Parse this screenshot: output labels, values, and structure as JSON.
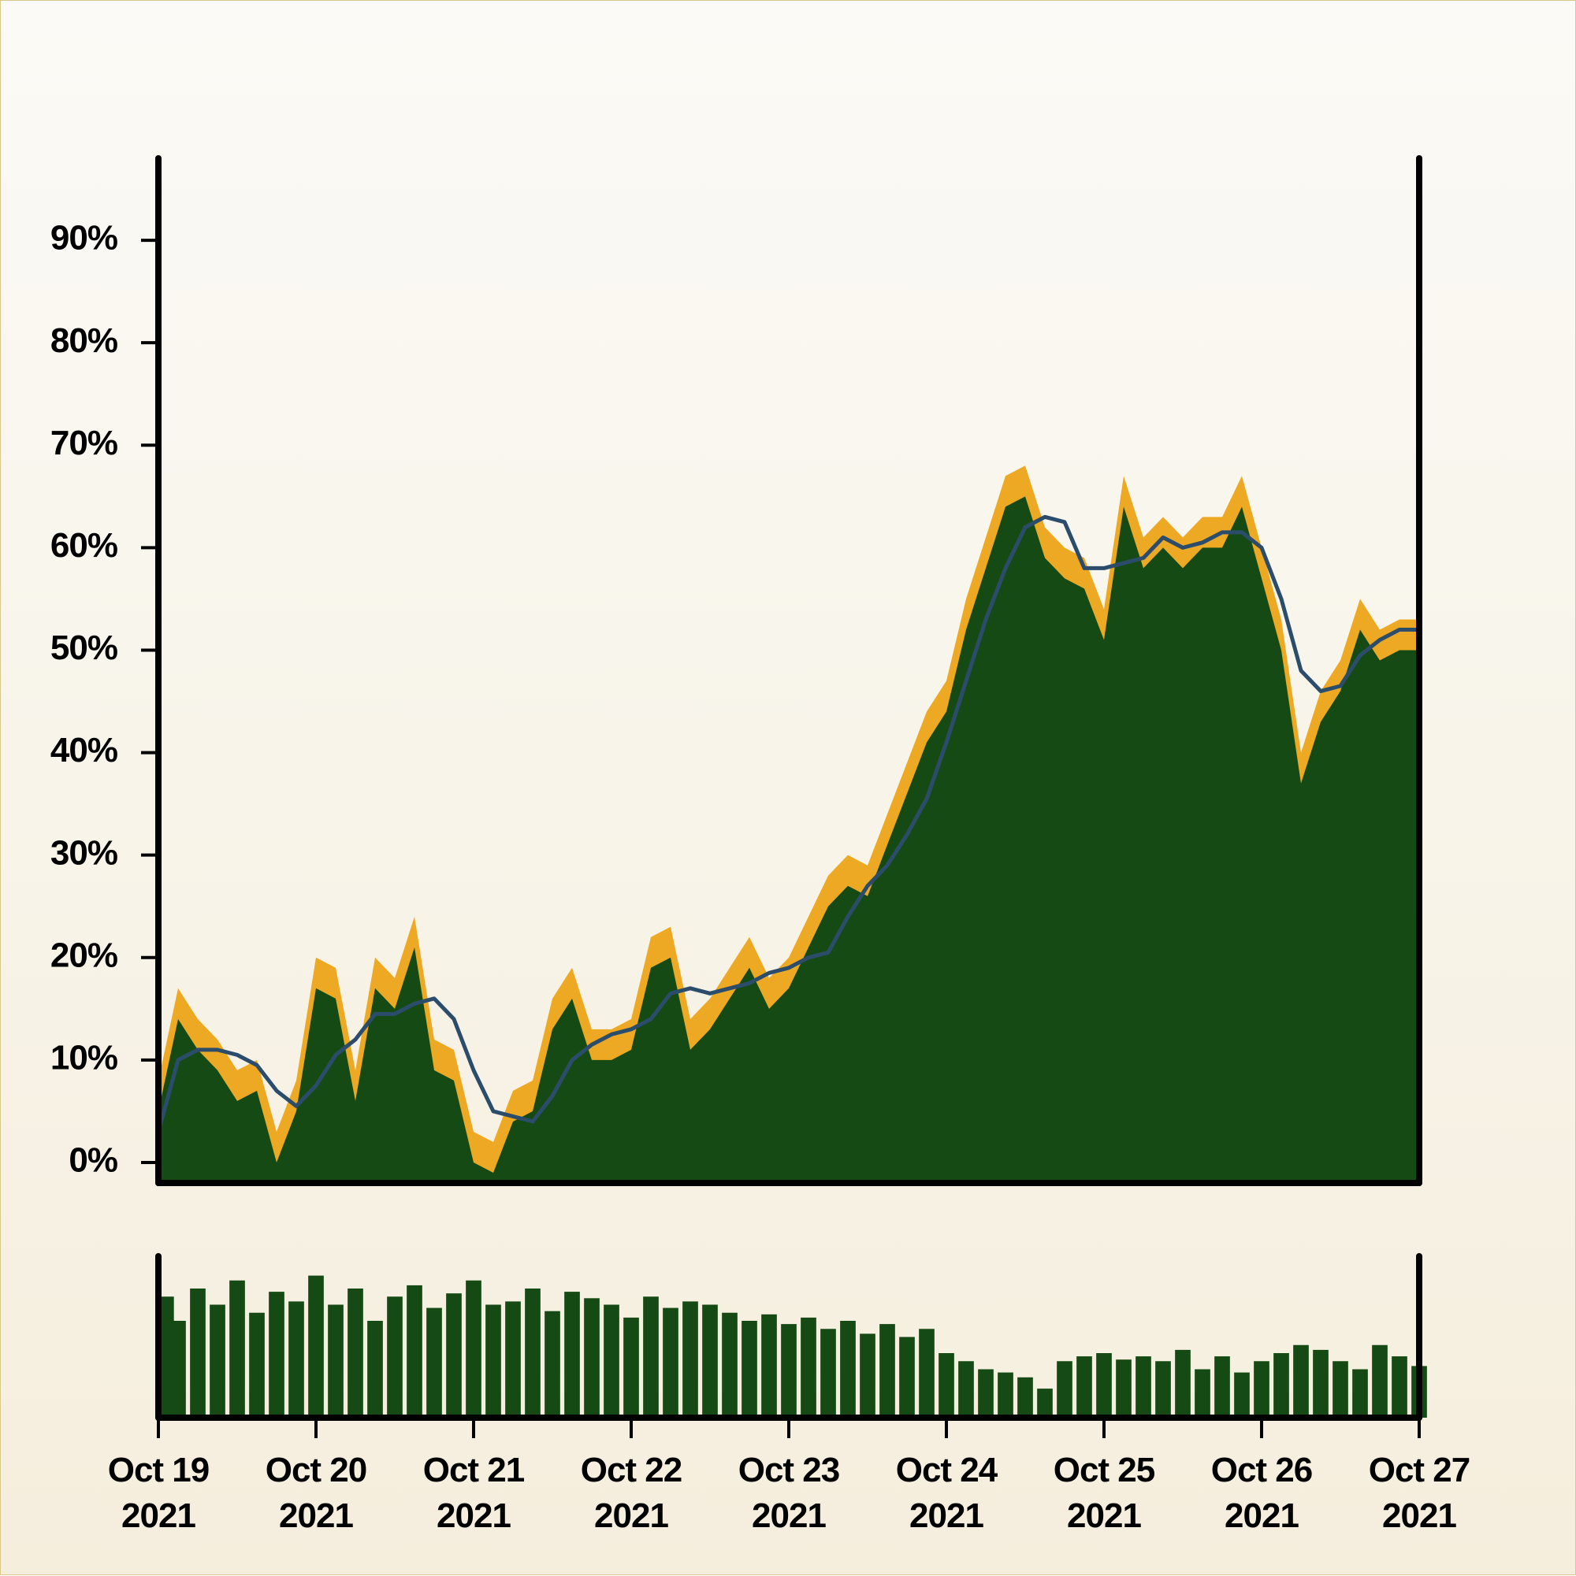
{
  "chart_data": {
    "type": "area",
    "x": [
      "2021-10-19T00:00",
      "2021-10-19T03:00",
      "2021-10-19T06:00",
      "2021-10-19T09:00",
      "2021-10-19T12:00",
      "2021-10-19T15:00",
      "2021-10-19T18:00",
      "2021-10-19T21:00",
      "2021-10-20T00:00",
      "2021-10-20T03:00",
      "2021-10-20T06:00",
      "2021-10-20T09:00",
      "2021-10-20T12:00",
      "2021-10-20T15:00",
      "2021-10-20T18:00",
      "2021-10-20T21:00",
      "2021-10-21T00:00",
      "2021-10-21T03:00",
      "2021-10-21T06:00",
      "2021-10-21T09:00",
      "2021-10-21T12:00",
      "2021-10-21T15:00",
      "2021-10-21T18:00",
      "2021-10-21T21:00",
      "2021-10-22T00:00",
      "2021-10-22T03:00",
      "2021-10-22T06:00",
      "2021-10-22T09:00",
      "2021-10-22T12:00",
      "2021-10-22T15:00",
      "2021-10-22T18:00",
      "2021-10-22T21:00",
      "2021-10-23T00:00",
      "2021-10-23T03:00",
      "2021-10-23T06:00",
      "2021-10-23T09:00",
      "2021-10-23T12:00",
      "2021-10-23T15:00",
      "2021-10-23T18:00",
      "2021-10-23T21:00",
      "2021-10-24T00:00",
      "2021-10-24T03:00",
      "2021-10-24T06:00",
      "2021-10-24T09:00",
      "2021-10-24T12:00",
      "2021-10-24T15:00",
      "2021-10-24T18:00",
      "2021-10-24T21:00",
      "2021-10-25T00:00",
      "2021-10-25T03:00",
      "2021-10-25T06:00",
      "2021-10-25T09:00",
      "2021-10-25T12:00",
      "2021-10-25T15:00",
      "2021-10-25T18:00",
      "2021-10-25T21:00",
      "2021-10-26T00:00",
      "2021-10-26T03:00",
      "2021-10-26T06:00",
      "2021-10-26T09:00",
      "2021-10-26T12:00",
      "2021-10-26T15:00",
      "2021-10-26T18:00",
      "2021-10-26T21:00",
      "2021-10-27T00:00"
    ],
    "series": [
      {
        "color": "#eda923",
        "values": [
          8,
          17,
          14,
          12,
          9,
          10,
          3,
          8,
          20,
          19,
          9,
          20,
          18,
          24,
          12,
          11,
          3,
          2,
          7,
          8,
          16,
          19,
          13,
          13,
          14,
          22,
          23,
          14,
          16,
          19,
          22,
          18,
          20,
          24,
          28,
          30,
          29,
          34,
          39,
          44,
          47,
          55,
          61,
          67,
          68,
          62,
          60,
          59,
          54,
          67,
          61,
          63,
          61,
          63,
          63,
          67,
          60,
          53,
          40,
          46,
          49,
          55,
          52,
          53,
          53
        ]
      },
      {
        "color": "#164a14",
        "values": [
          5,
          14,
          11,
          9,
          6,
          7,
          0,
          5,
          17,
          16,
          6,
          17,
          15,
          21,
          9,
          8,
          0,
          -1,
          4,
          5,
          13,
          16,
          10,
          10,
          11,
          19,
          20,
          11,
          13,
          16,
          19,
          15,
          17,
          21,
          25,
          27,
          26,
          31,
          36,
          41,
          44,
          52,
          58,
          64,
          65,
          59,
          57,
          56,
          51,
          64,
          58,
          60,
          58,
          60,
          60,
          64,
          57,
          50,
          37,
          43,
          46,
          52,
          49,
          50,
          50
        ]
      },
      {
        "type": "line",
        "color": "#2b4d6b",
        "values": [
          3,
          10,
          11,
          11,
          10.5,
          9.5,
          7,
          5.5,
          7.5,
          10.5,
          12,
          14.5,
          14.5,
          15.5,
          16,
          14,
          9,
          5,
          4.5,
          4,
          6.5,
          10,
          11.5,
          12.5,
          13,
          14,
          16.5,
          17,
          16.5,
          17,
          17.5,
          18.5,
          19,
          20,
          20.5,
          24,
          27,
          29,
          32,
          35.5,
          41,
          47,
          53,
          58,
          62,
          63,
          62.5,
          58,
          58,
          58.5,
          59,
          61,
          60,
          60.5,
          61.5,
          61.5,
          60,
          55,
          48,
          46,
          46.5,
          49.5,
          51,
          52,
          52
        ]
      }
    ],
    "xlim": [
      "2021-10-19T00:00",
      "2021-10-27T00:00"
    ],
    "xticks": [
      {
        "value": "2021-10-19T00:00",
        "label": "Oct 19 2021"
      },
      {
        "value": "2021-10-20T00:00",
        "label": "Oct 20 2021"
      },
      {
        "value": "2021-10-21T00:00",
        "label": "Oct 21 2021"
      },
      {
        "value": "2021-10-22T00:00",
        "label": "Oct 22 2021"
      },
      {
        "value": "2021-10-23T00:00",
        "label": "Oct 23 2021"
      },
      {
        "value": "2021-10-24T00:00",
        "label": "Oct 24 2021"
      },
      {
        "value": "2021-10-25T00:00",
        "label": "Oct 25 2021"
      },
      {
        "value": "2021-10-26T00:00",
        "label": "Oct 26 2021"
      },
      {
        "value": "2021-10-27T00:00",
        "label": "Oct 27 2021"
      }
    ],
    "ylim": [
      -2,
      98
    ],
    "yticks": [
      {
        "value": 0,
        "label": "0%"
      },
      {
        "value": 10,
        "label": "10%"
      },
      {
        "value": 20,
        "label": "20%"
      },
      {
        "value": 30,
        "label": "30%"
      },
      {
        "value": 40,
        "label": "40%"
      },
      {
        "value": 50,
        "label": "50%"
      },
      {
        "value": 60,
        "label": "60%"
      },
      {
        "value": 70,
        "label": "70%"
      },
      {
        "value": 80,
        "label": "80%"
      },
      {
        "value": 90,
        "label": "90%"
      }
    ],
    "volume": {
      "type": "bar",
      "color": "#164a14",
      "ylim": [
        0,
        100
      ],
      "values": [
        75,
        60,
        80,
        70,
        85,
        65,
        78,
        72,
        88,
        70,
        80,
        60,
        75,
        82,
        68,
        77,
        85,
        70,
        72,
        80,
        66,
        78,
        74,
        70,
        62,
        75,
        68,
        72,
        70,
        65,
        60,
        64,
        58,
        62,
        55,
        60,
        52,
        58,
        50,
        55,
        40,
        35,
        30,
        28,
        25,
        18,
        35,
        38,
        40,
        36,
        38,
        35,
        42,
        30,
        38,
        28,
        35,
        40,
        45,
        42,
        35,
        30,
        45,
        38,
        32
      ]
    }
  }
}
